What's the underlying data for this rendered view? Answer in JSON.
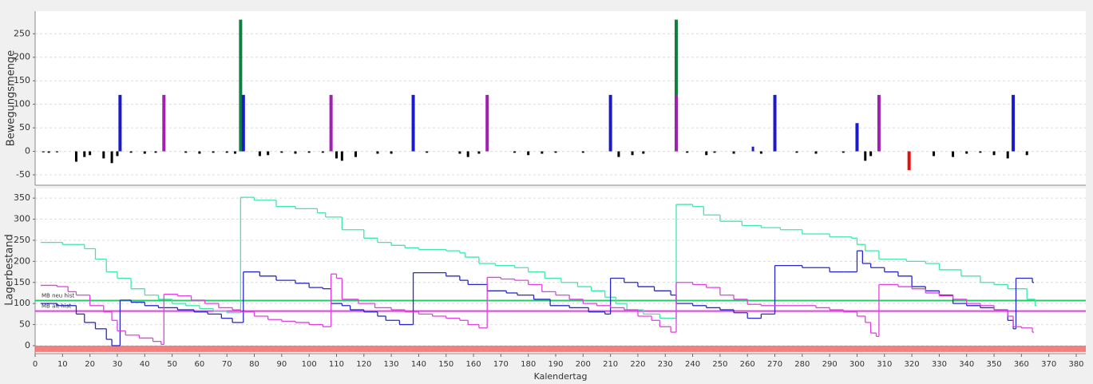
{
  "chart_data": [
    {
      "type": "bar",
      "ylabel": "Bewegungsmenge",
      "xlim": [
        0,
        380
      ],
      "ylim": [
        -72,
        298
      ],
      "yticks": [
        -50,
        0,
        50,
        100,
        150,
        200,
        250
      ],
      "grid": true,
      "x": [
        3,
        5,
        8,
        15,
        18,
        20,
        25,
        28,
        30,
        31,
        35,
        40,
        44,
        47,
        55,
        60,
        65,
        70,
        73,
        75,
        76,
        82,
        85,
        90,
        95,
        100,
        105,
        108,
        110,
        112,
        117,
        125,
        130,
        138,
        143,
        155,
        158,
        162,
        165,
        175,
        180,
        185,
        190,
        200,
        210,
        213,
        218,
        222,
        234,
        234,
        238,
        245,
        248,
        255,
        262,
        265,
        270,
        278,
        285,
        295,
        300,
        303,
        305,
        308,
        319,
        328,
        335,
        340,
        345,
        350,
        355,
        357,
        362
      ],
      "values": [
        -2,
        -3,
        -2,
        -22,
        -12,
        -8,
        -15,
        -25,
        -10,
        120,
        -3,
        -5,
        -3,
        120,
        -3,
        -5,
        -3,
        -3,
        -5,
        280,
        120,
        -10,
        -8,
        -3,
        -5,
        -3,
        -3,
        120,
        -15,
        -20,
        -12,
        -5,
        -5,
        120,
        -3,
        -5,
        -12,
        -5,
        120,
        -3,
        -8,
        -5,
        -3,
        -3,
        120,
        -12,
        -8,
        -5,
        280,
        120,
        -3,
        -8,
        -3,
        -5,
        10,
        -5,
        120,
        -3,
        -5,
        -3,
        60,
        -20,
        -10,
        120,
        -40,
        -10,
        -12,
        -5,
        -3,
        -8,
        -15,
        120,
        -8
      ],
      "colors": [
        "#000",
        "#000",
        "#000",
        "#000",
        "#000",
        "#000",
        "#000",
        "#000",
        "#000",
        "#1a1acc",
        "#000",
        "#000",
        "#000",
        "#a020b0",
        "#000",
        "#000",
        "#000",
        "#000",
        "#000",
        "#108040",
        "#1a1acc",
        "#000",
        "#000",
        "#000",
        "#000",
        "#000",
        "#000",
        "#a020b0",
        "#000",
        "#000",
        "#000",
        "#000",
        "#000",
        "#1a1acc",
        "#000",
        "#000",
        "#000",
        "#000",
        "#a020b0",
        "#000",
        "#000",
        "#000",
        "#000",
        "#000",
        "#1a1acc",
        "#000",
        "#000",
        "#000",
        "#108040",
        "#a020b0",
        "#000",
        "#000",
        "#000",
        "#000",
        "#1a1acc",
        "#000",
        "#1a1acc",
        "#000",
        "#000",
        "#000",
        "#1a1acc",
        "#000",
        "#000",
        "#a020b0",
        "#e01010",
        "#000",
        "#000",
        "#000",
        "#000",
        "#000",
        "#000",
        "#1a1acc",
        "#000"
      ]
    },
    {
      "type": "step",
      "ylabel": "Lagerbestand",
      "xlabel": "Kalendertag",
      "xlim": [
        0,
        380
      ],
      "xticks": [
        0,
        10,
        20,
        30,
        40,
        50,
        60,
        70,
        80,
        90,
        100,
        110,
        120,
        130,
        140,
        150,
        160,
        170,
        180,
        190,
        200,
        210,
        220,
        230,
        240,
        250,
        260,
        270,
        280,
        290,
        300,
        310,
        320,
        330,
        340,
        350,
        360,
        370,
        380
      ],
      "ylim": [
        -19,
        373
      ],
      "yticks": [
        0,
        50,
        100,
        150,
        200,
        250,
        300,
        350
      ],
      "grid": true,
      "band": {
        "from": -15,
        "to": 0,
        "color": "#ee6a6a"
      },
      "reference_lines": [
        {
          "label": "MB neu hist",
          "value": 107,
          "color": "#22cc66"
        },
        {
          "label": "MB alt hist",
          "value": 82,
          "color": "#e040e0"
        }
      ],
      "series": [
        {
          "color": "#3ee8a8",
          "x": [
            2,
            10,
            18,
            22,
            26,
            30,
            35,
            40,
            45,
            50,
            55,
            60,
            65,
            70,
            75,
            80,
            88,
            95,
            103,
            106,
            112,
            120,
            125,
            130,
            135,
            140,
            150,
            155,
            157,
            162,
            168,
            175,
            180,
            186,
            192,
            198,
            203,
            208,
            212,
            216,
            222,
            228,
            234,
            240,
            244,
            250,
            258,
            265,
            272,
            280,
            290,
            298,
            300,
            303,
            308,
            318,
            325,
            330,
            338,
            345,
            350,
            355,
            362,
            365
          ],
          "values": [
            245,
            240,
            230,
            205,
            175,
            160,
            135,
            120,
            110,
            100,
            95,
            88,
            82,
            78,
            352,
            345,
            330,
            325,
            315,
            305,
            275,
            255,
            245,
            238,
            232,
            228,
            225,
            220,
            210,
            195,
            190,
            185,
            175,
            160,
            150,
            140,
            130,
            115,
            100,
            85,
            75,
            65,
            335,
            330,
            310,
            295,
            285,
            280,
            275,
            265,
            258,
            255,
            240,
            225,
            205,
            200,
            195,
            180,
            165,
            150,
            145,
            135,
            110,
            95
          ]
        },
        {
          "color": "#2828c8",
          "x": [
            2,
            8,
            15,
            18,
            22,
            26,
            28,
            31,
            35,
            40,
            45,
            52,
            58,
            63,
            68,
            72,
            76,
            82,
            88,
            95,
            100,
            105,
            108,
            112,
            115,
            120,
            125,
            128,
            133,
            138,
            150,
            155,
            158,
            165,
            172,
            176,
            182,
            188,
            195,
            202,
            208,
            210,
            215,
            220,
            226,
            232,
            234,
            240,
            245,
            250,
            255,
            260,
            265,
            270,
            280,
            290,
            295,
            300,
            302,
            305,
            310,
            315,
            320,
            325,
            330,
            335,
            340,
            345,
            350,
            355,
            357,
            358,
            364
          ],
          "values": [
            100,
            95,
            75,
            55,
            40,
            15,
            0,
            108,
            103,
            95,
            90,
            85,
            80,
            75,
            65,
            55,
            175,
            165,
            155,
            148,
            138,
            135,
            100,
            95,
            85,
            80,
            70,
            60,
            50,
            173,
            165,
            155,
            145,
            130,
            125,
            120,
            110,
            95,
            90,
            80,
            75,
            160,
            150,
            140,
            130,
            120,
            100,
            95,
            90,
            85,
            78,
            65,
            75,
            190,
            185,
            175,
            175,
            225,
            195,
            185,
            175,
            165,
            140,
            130,
            120,
            100,
            95,
            90,
            85,
            60,
            40,
            160,
            150
          ]
        },
        {
          "color": "#e040e0",
          "x": [
            2,
            8,
            12,
            15,
            20,
            25,
            28,
            30,
            33,
            38,
            43,
            46,
            47,
            52,
            57,
            62,
            67,
            72,
            75,
            80,
            85,
            90,
            95,
            100,
            105,
            108,
            110,
            112,
            118,
            124,
            130,
            135,
            140,
            145,
            150,
            155,
            158,
            162,
            165,
            170,
            175,
            180,
            185,
            190,
            195,
            200,
            205,
            210,
            215,
            220,
            225,
            228,
            232,
            234,
            240,
            245,
            250,
            255,
            260,
            265,
            275,
            285,
            290,
            295,
            300,
            303,
            305,
            307,
            308,
            315,
            320,
            325,
            330,
            335,
            340,
            345,
            350,
            355,
            357,
            360,
            364
          ],
          "values": [
            143,
            140,
            128,
            120,
            95,
            80,
            60,
            35,
            25,
            18,
            10,
            3,
            122,
            118,
            108,
            100,
            90,
            85,
            80,
            70,
            62,
            58,
            55,
            50,
            45,
            170,
            160,
            110,
            100,
            90,
            85,
            80,
            75,
            70,
            65,
            60,
            50,
            42,
            162,
            158,
            155,
            145,
            128,
            120,
            110,
            100,
            95,
            90,
            85,
            70,
            60,
            45,
            32,
            150,
            145,
            138,
            120,
            110,
            98,
            95,
            95,
            90,
            85,
            80,
            70,
            55,
            30,
            22,
            145,
            140,
            135,
            125,
            118,
            110,
            100,
            95,
            85,
            70,
            45,
            42,
            32
          ]
        }
      ]
    }
  ]
}
